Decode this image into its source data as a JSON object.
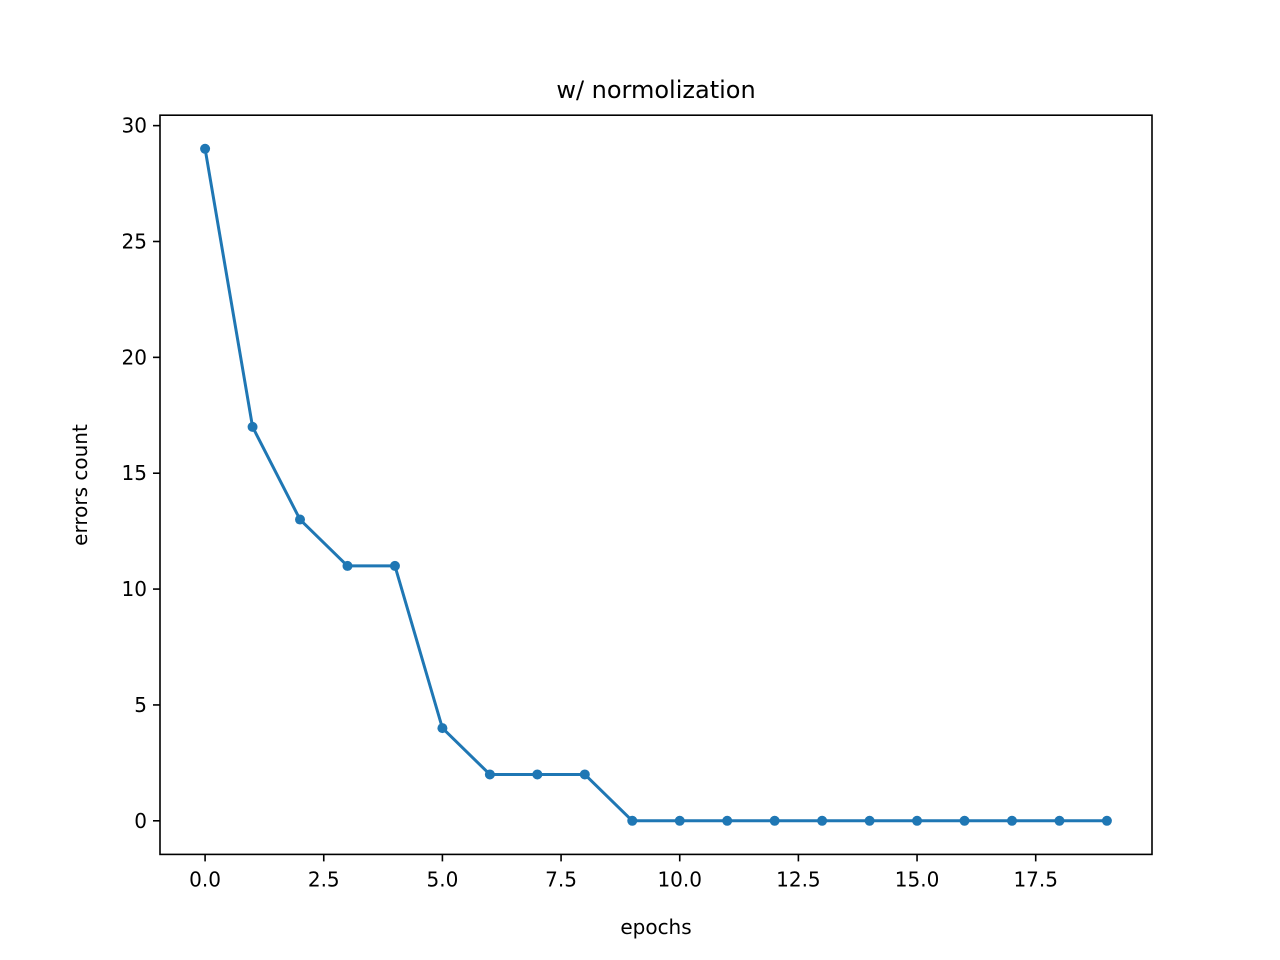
{
  "chart_data": {
    "type": "line",
    "title": "w/ normolization",
    "xlabel": "epochs",
    "ylabel": "errors count",
    "xlim": [
      -0.95,
      19.95
    ],
    "ylim": [
      -1.45,
      30.45
    ],
    "x_ticks": [
      0.0,
      2.5,
      5.0,
      7.5,
      10.0,
      12.5,
      15.0,
      17.5
    ],
    "x_tick_labels": [
      "0.0",
      "2.5",
      "5.0",
      "7.5",
      "10.0",
      "12.5",
      "15.0",
      "17.5"
    ],
    "y_ticks": [
      0,
      5,
      10,
      15,
      20,
      25,
      30
    ],
    "y_tick_labels": [
      "0",
      "5",
      "10",
      "15",
      "20",
      "25",
      "30"
    ],
    "grid": false,
    "legend": null,
    "series": [
      {
        "color": "#1f77b4",
        "marker": "circle",
        "x": [
          0,
          1,
          2,
          3,
          4,
          5,
          6,
          7,
          8,
          9,
          10,
          11,
          12,
          13,
          14,
          15,
          16,
          17,
          18,
          19
        ],
        "y": [
          29,
          17,
          13,
          11,
          11,
          4,
          2,
          2,
          2,
          0,
          0,
          0,
          0,
          0,
          0,
          0,
          0,
          0,
          0,
          0
        ]
      }
    ]
  }
}
